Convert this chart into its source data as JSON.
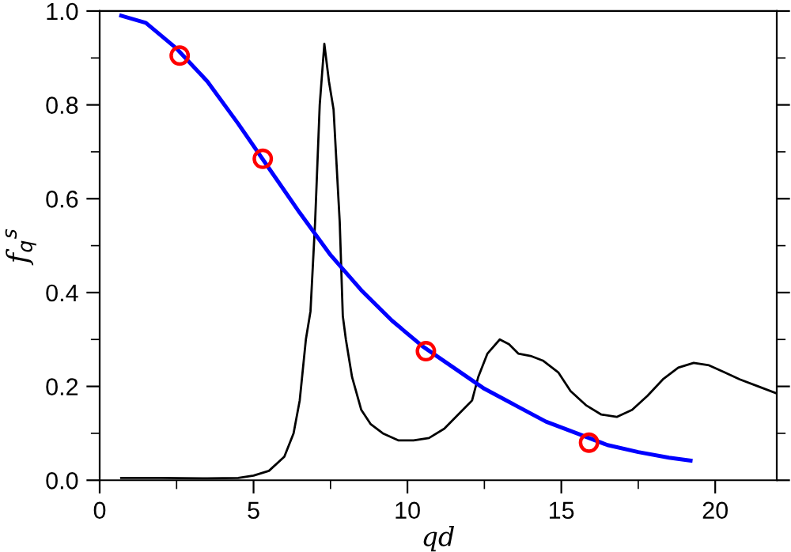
{
  "chart_data": {
    "type": "line",
    "xlabel": "qd",
    "ylabel": "f$_{q}$$^{s}$",
    "xlim": [
      0,
      22
    ],
    "ylim": [
      0,
      1.0
    ],
    "xticks": [
      0,
      5,
      10,
      15,
      20
    ],
    "yticks": [
      {
        "value": 0,
        "label": "0.0"
      },
      0.2,
      0.4,
      0.6,
      0.8,
      {
        "value": 1,
        "label": "1.0"
      }
    ],
    "grid": false,
    "legend": false,
    "series": [
      {
        "color": "#000000",
        "x": [
          0.7,
          2.0,
          3.5,
          4.5,
          5.0,
          5.5,
          6.0,
          6.3,
          6.5,
          6.7,
          6.85,
          7.0,
          7.15,
          7.3,
          7.45,
          7.6,
          7.8,
          7.9,
          8.0,
          8.2,
          8.5,
          8.8,
          9.2,
          9.7,
          10.2,
          10.7,
          11.2,
          11.8,
          12.1,
          12.3,
          12.6,
          13.0,
          13.3,
          13.6,
          14.0,
          14.4,
          14.9,
          15.3,
          15.8,
          16.3,
          16.8,
          17.3,
          17.8,
          18.3,
          18.8,
          19.3,
          19.8,
          20.3,
          20.8,
          21.4,
          22.0
        ],
        "values": [
          0.005,
          0.005,
          0.004,
          0.005,
          0.01,
          0.02,
          0.05,
          0.1,
          0.17,
          0.3,
          0.36,
          0.55,
          0.8,
          0.93,
          0.85,
          0.79,
          0.55,
          0.35,
          0.3,
          0.22,
          0.15,
          0.12,
          0.1,
          0.085,
          0.085,
          0.09,
          0.11,
          0.15,
          0.17,
          0.22,
          0.27,
          0.3,
          0.29,
          0.27,
          0.265,
          0.255,
          0.23,
          0.19,
          0.16,
          0.14,
          0.135,
          0.15,
          0.18,
          0.215,
          0.24,
          0.25,
          0.245,
          0.23,
          0.215,
          0.2,
          0.185
        ]
      },
      {
        "color": "#0000ff",
        "x": [
          0.7,
          1.5,
          2.5,
          3.5,
          4.5,
          5.5,
          6.5,
          7.5,
          8.5,
          9.5,
          10.5,
          11.5,
          12.5,
          13.5,
          14.5,
          15.5,
          16.5,
          17.5,
          18.5,
          19.2
        ],
        "values": [
          0.99,
          0.975,
          0.92,
          0.85,
          0.76,
          0.665,
          0.57,
          0.48,
          0.405,
          0.34,
          0.285,
          0.24,
          0.195,
          0.16,
          0.125,
          0.1,
          0.075,
          0.06,
          0.048,
          0.042
        ]
      },
      {
        "type": "scatter",
        "color": "#ff0000",
        "marker": "circle",
        "x": [
          2.6,
          5.3,
          10.6,
          15.9
        ],
        "values": [
          0.905,
          0.685,
          0.275,
          0.08
        ]
      }
    ]
  }
}
